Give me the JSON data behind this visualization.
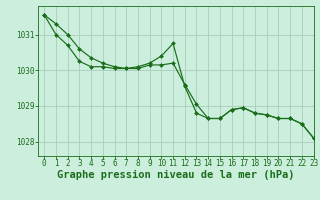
{
  "title": "Graphe pression niveau de la mer (hPa)",
  "bg_color": "#cceedd",
  "grid_color": "#aaccbb",
  "line_color": "#1a6e1a",
  "marker_color": "#1a6e1a",
  "xlim": [
    -0.5,
    23
  ],
  "ylim": [
    1027.6,
    1031.8
  ],
  "yticks": [
    1028,
    1029,
    1030,
    1031
  ],
  "xticks": [
    0,
    1,
    2,
    3,
    4,
    5,
    6,
    7,
    8,
    9,
    10,
    11,
    12,
    13,
    14,
    15,
    16,
    17,
    18,
    19,
    20,
    21,
    22,
    23
  ],
  "series1_x": [
    0,
    1,
    2,
    3,
    4,
    5,
    6,
    7,
    8,
    9,
    10,
    11,
    12,
    13,
    14,
    15,
    16,
    17,
    18,
    19,
    20,
    21,
    22,
    23
  ],
  "series1_y": [
    1031.55,
    1031.3,
    1031.0,
    1030.6,
    1030.35,
    1030.2,
    1030.1,
    1030.05,
    1030.05,
    1030.15,
    1030.15,
    1030.2,
    1029.6,
    1029.05,
    1028.65,
    1028.65,
    1028.9,
    1028.95,
    1028.8,
    1028.75,
    1028.65,
    1028.65,
    1028.5,
    1028.1
  ],
  "series2_x": [
    0,
    1,
    2,
    3,
    4,
    5,
    6,
    7,
    8,
    9,
    10,
    11,
    12,
    13,
    14,
    15,
    16,
    17,
    18,
    19,
    20,
    21,
    22,
    23
  ],
  "series2_y": [
    1031.55,
    1031.0,
    1030.7,
    1030.25,
    1030.1,
    1030.1,
    1030.05,
    1030.05,
    1030.1,
    1030.2,
    1030.4,
    1030.75,
    1029.55,
    1028.8,
    1028.65,
    1028.65,
    1028.9,
    1028.95,
    1028.8,
    1028.75,
    1028.65,
    1028.65,
    1028.5,
    1028.1
  ],
  "tick_fontsize": 5.5,
  "title_fontsize": 7.5
}
